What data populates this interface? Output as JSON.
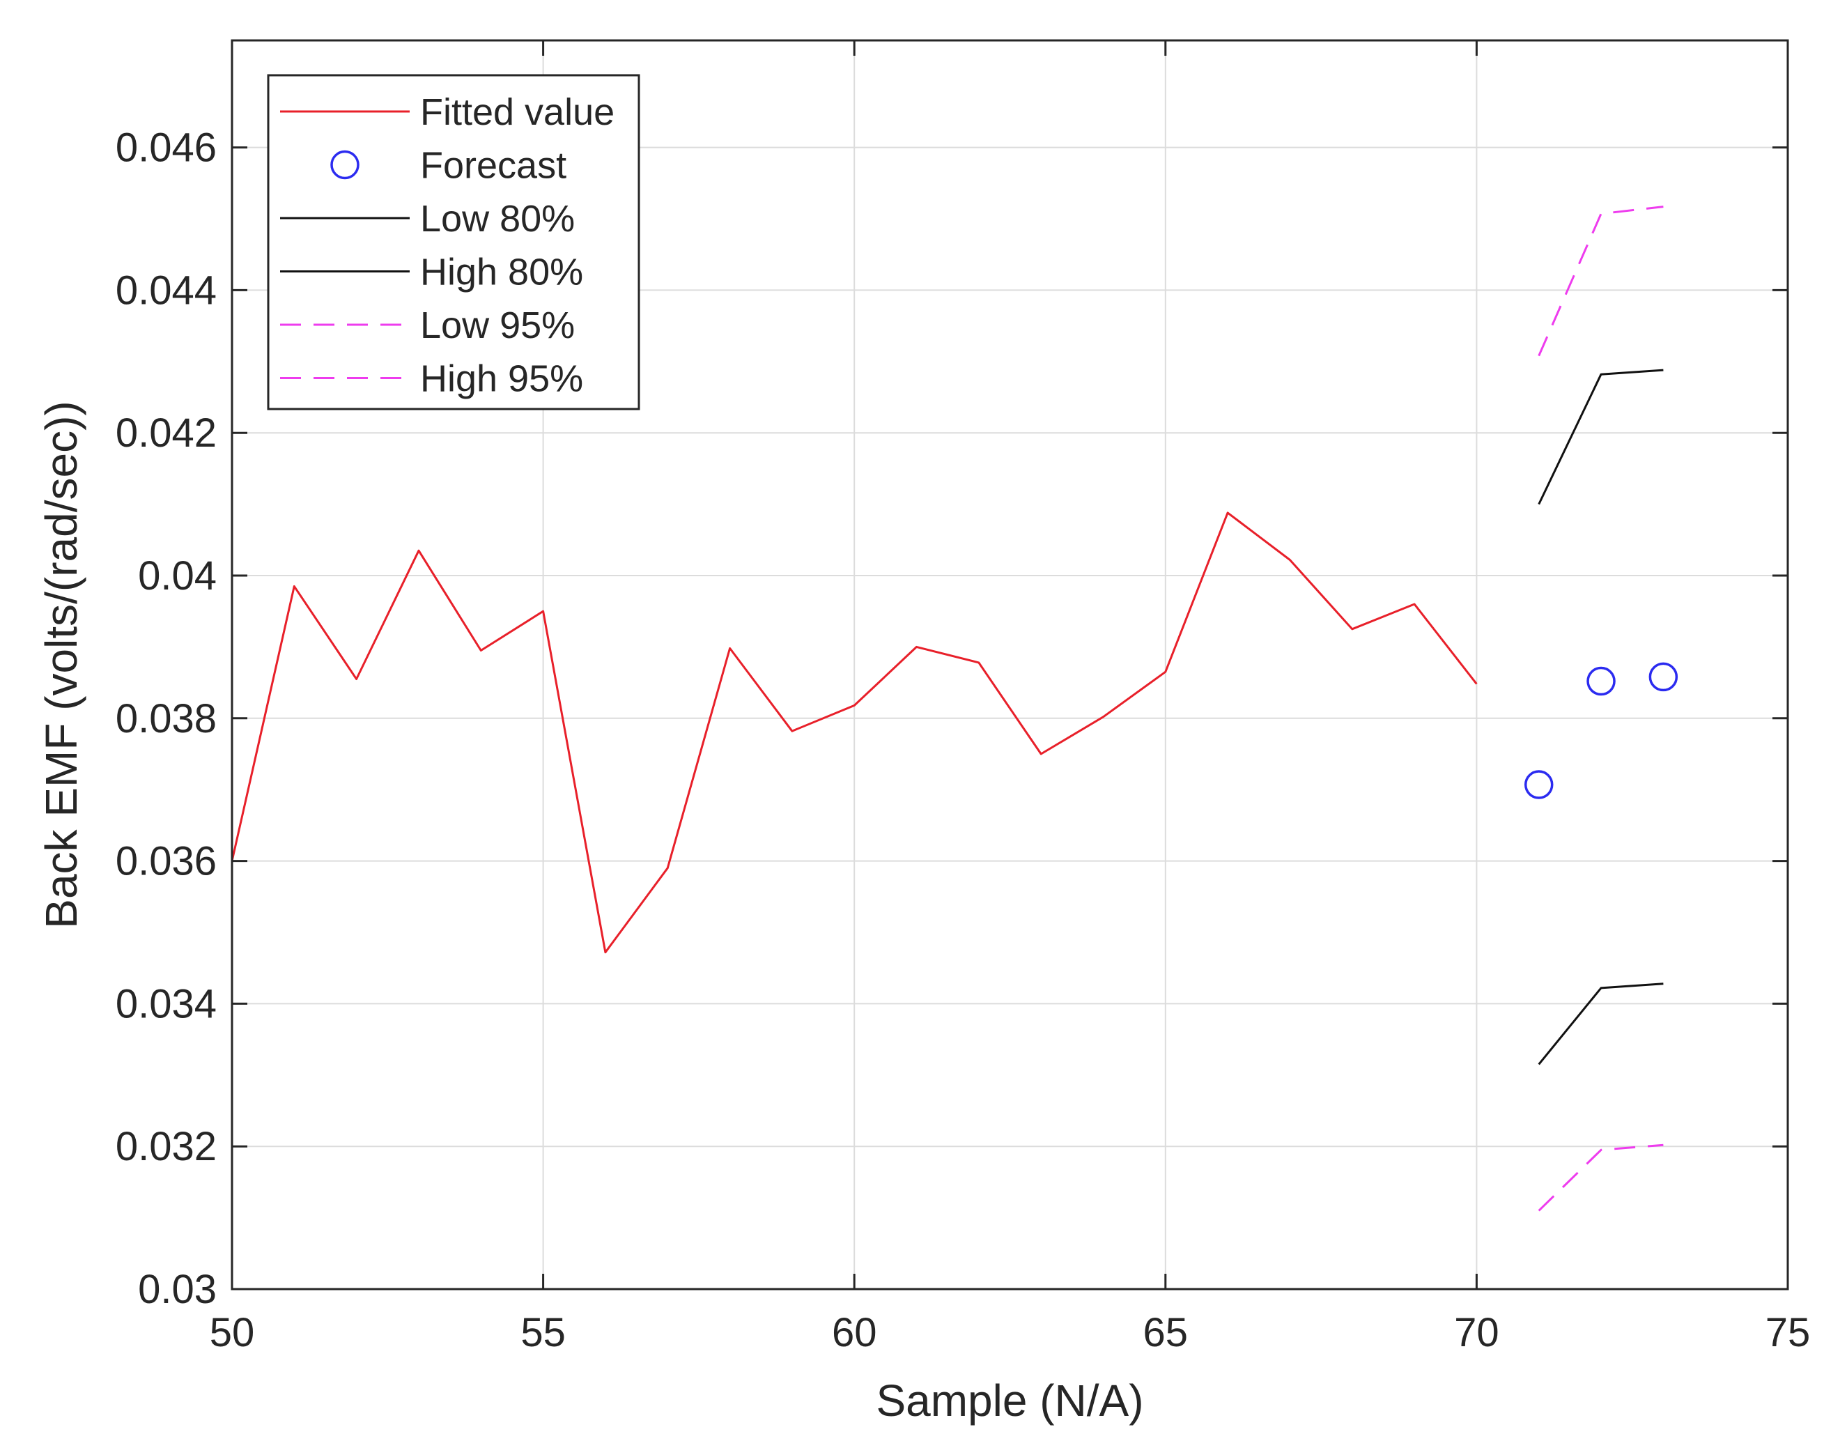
{
  "chart_data": {
    "type": "line",
    "title": "",
    "xlabel": "Sample (N/A)",
    "ylabel": "Back EMF (volts/(rad/sec))",
    "xlim": [
      50,
      75
    ],
    "ylim": [
      0.03,
      0.0475
    ],
    "grid": true,
    "legend_position": "top-left",
    "xticks": [
      50,
      55,
      60,
      65,
      70,
      75
    ],
    "xtick_labels": [
      "50",
      "55",
      "60",
      "65",
      "70",
      "75"
    ],
    "yticks": [
      0.03,
      0.032,
      0.034,
      0.036,
      0.038,
      0.04,
      0.042,
      0.044,
      0.046
    ],
    "ytick_labels": [
      "0.03",
      "0.032",
      "0.034",
      "0.036",
      "0.038",
      "0.04",
      "0.042",
      "0.044",
      "0.046"
    ],
    "series": [
      {
        "name": "Fitted value",
        "style": "line",
        "color": "#e8202a",
        "x": [
          50,
          51,
          52,
          53,
          54,
          55,
          56,
          57,
          58,
          59,
          60,
          61,
          62,
          63,
          64,
          65,
          66,
          67,
          68,
          69,
          70
        ],
        "y": [
          0.036,
          0.03985,
          0.03855,
          0.04035,
          0.03895,
          0.0395,
          0.03472,
          0.0359,
          0.03898,
          0.03782,
          0.03818,
          0.039,
          0.03878,
          0.0375,
          0.03802,
          0.03865,
          0.04088,
          0.04022,
          0.03925,
          0.0396,
          0.03848
        ]
      },
      {
        "name": "Forecast",
        "style": "marker",
        "color": "#2b2bf0",
        "x": [
          71,
          72,
          73
        ],
        "y": [
          0.03707,
          0.03852,
          0.03858
        ]
      },
      {
        "name": "Low 80%",
        "style": "line",
        "color": "#111111",
        "x": [
          71,
          72,
          73
        ],
        "y": [
          0.03315,
          0.03422,
          0.03428
        ]
      },
      {
        "name": "High 80%",
        "style": "line",
        "color": "#111111",
        "x": [
          71,
          72,
          73
        ],
        "y": [
          0.041,
          0.04282,
          0.04288
        ]
      },
      {
        "name": "Low 95%",
        "style": "dashed",
        "color": "#ee3cee",
        "x": [
          71,
          72,
          73
        ],
        "y": [
          0.0311,
          0.03195,
          0.03202
        ]
      },
      {
        "name": "High 95%",
        "style": "dashed",
        "color": "#ee3cee",
        "x": [
          71,
          72,
          73
        ],
        "y": [
          0.04308,
          0.04507,
          0.04517
        ]
      }
    ],
    "legend": [
      "Fitted value",
      "Forecast",
      "Low 80%",
      "High 80%",
      "Low 95%",
      "High 95%"
    ]
  }
}
